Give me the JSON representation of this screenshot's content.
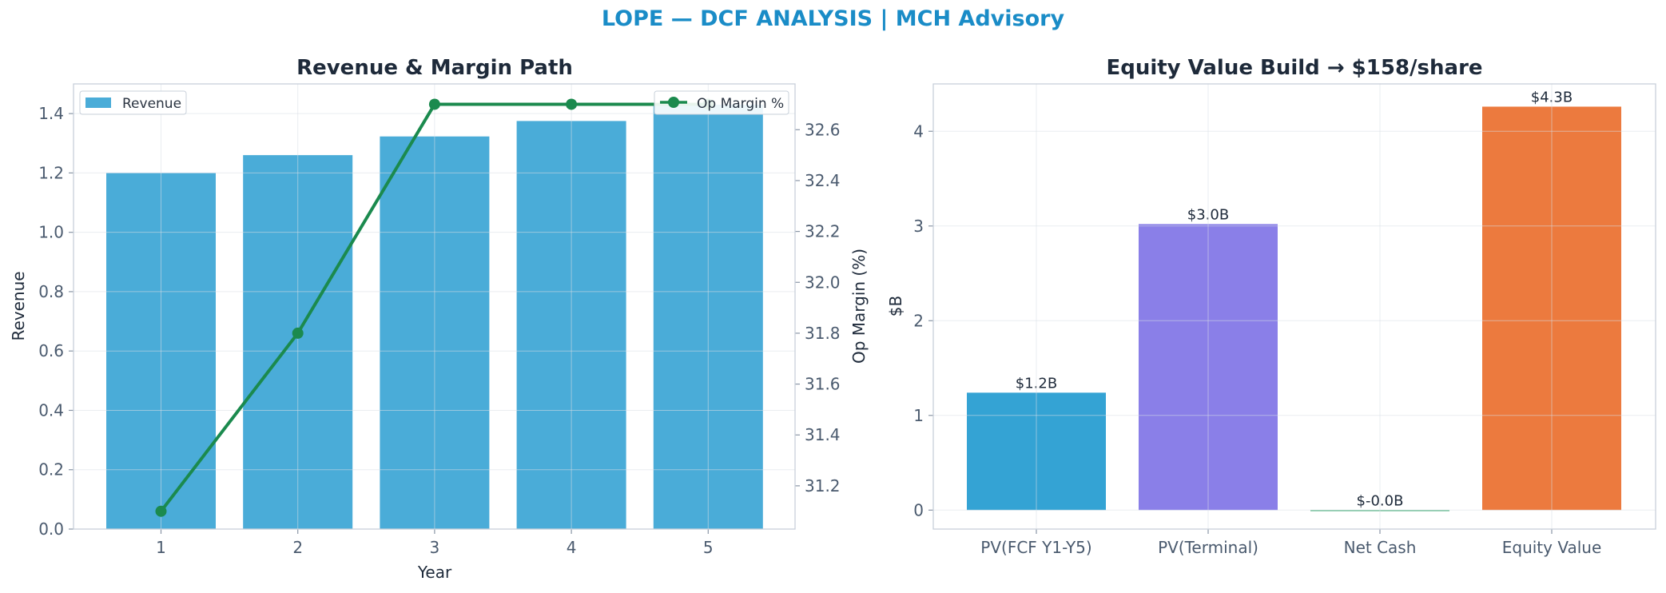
{
  "suptitle": "LOPE — DCF ANALYSIS | MCH Advisory",
  "colors": {
    "title": "#1a8cc7",
    "revenue_bar": "#4aacd8",
    "op_margin_line": "#1b8a4e",
    "pv_fcf": "#34a3d4",
    "pv_terminal": "#8a7fe8",
    "net_cash": "#3aaa70",
    "equity_value": "#ec7a3e"
  },
  "chart_data": [
    {
      "type": "bar",
      "title": "Revenue & Margin Path",
      "xlabel": "Year",
      "ylabel": "Revenue",
      "y2label": "Op Margin (%)",
      "categories": [
        "1",
        "2",
        "3",
        "4",
        "5"
      ],
      "ylim": [
        0,
        1.5
      ],
      "yticks": [
        "0.0",
        "0.2",
        "0.4",
        "0.6",
        "0.8",
        "1.0",
        "1.2",
        "1.4"
      ],
      "y2lim": [
        31.03,
        32.78
      ],
      "y2ticks": [
        "31.2",
        "31.4",
        "31.6",
        "31.8",
        "32.0",
        "32.2",
        "32.4",
        "32.6"
      ],
      "grid": true,
      "series": [
        {
          "name": "Revenue",
          "type": "bar",
          "axis": "left",
          "values": [
            1.2,
            1.26,
            1.323,
            1.375,
            1.43
          ]
        },
        {
          "name": "Op Margin %",
          "type": "line",
          "axis": "right",
          "values": [
            31.1,
            31.8,
            32.7,
            32.7,
            32.7
          ]
        }
      ],
      "legend": [
        {
          "label": "Revenue",
          "placement": "top-left"
        },
        {
          "label": "Op Margin %",
          "placement": "top-right"
        }
      ]
    },
    {
      "type": "bar",
      "title": "Equity Value Build → $158/share",
      "xlabel": "",
      "ylabel": "$B",
      "categories": [
        "PV(FCF Y1-Y5)",
        "PV(Terminal)",
        "Net Cash",
        "Equity Value"
      ],
      "values": [
        1.24,
        3.02,
        -0.01,
        4.26
      ],
      "data_labels": [
        "$1.2B",
        "$3.0B",
        "$-0.0B",
        "$4.3B"
      ],
      "ylim": [
        -0.2,
        4.5
      ],
      "yticks": [
        "0",
        "1",
        "2",
        "3",
        "4"
      ],
      "grid": true
    }
  ]
}
